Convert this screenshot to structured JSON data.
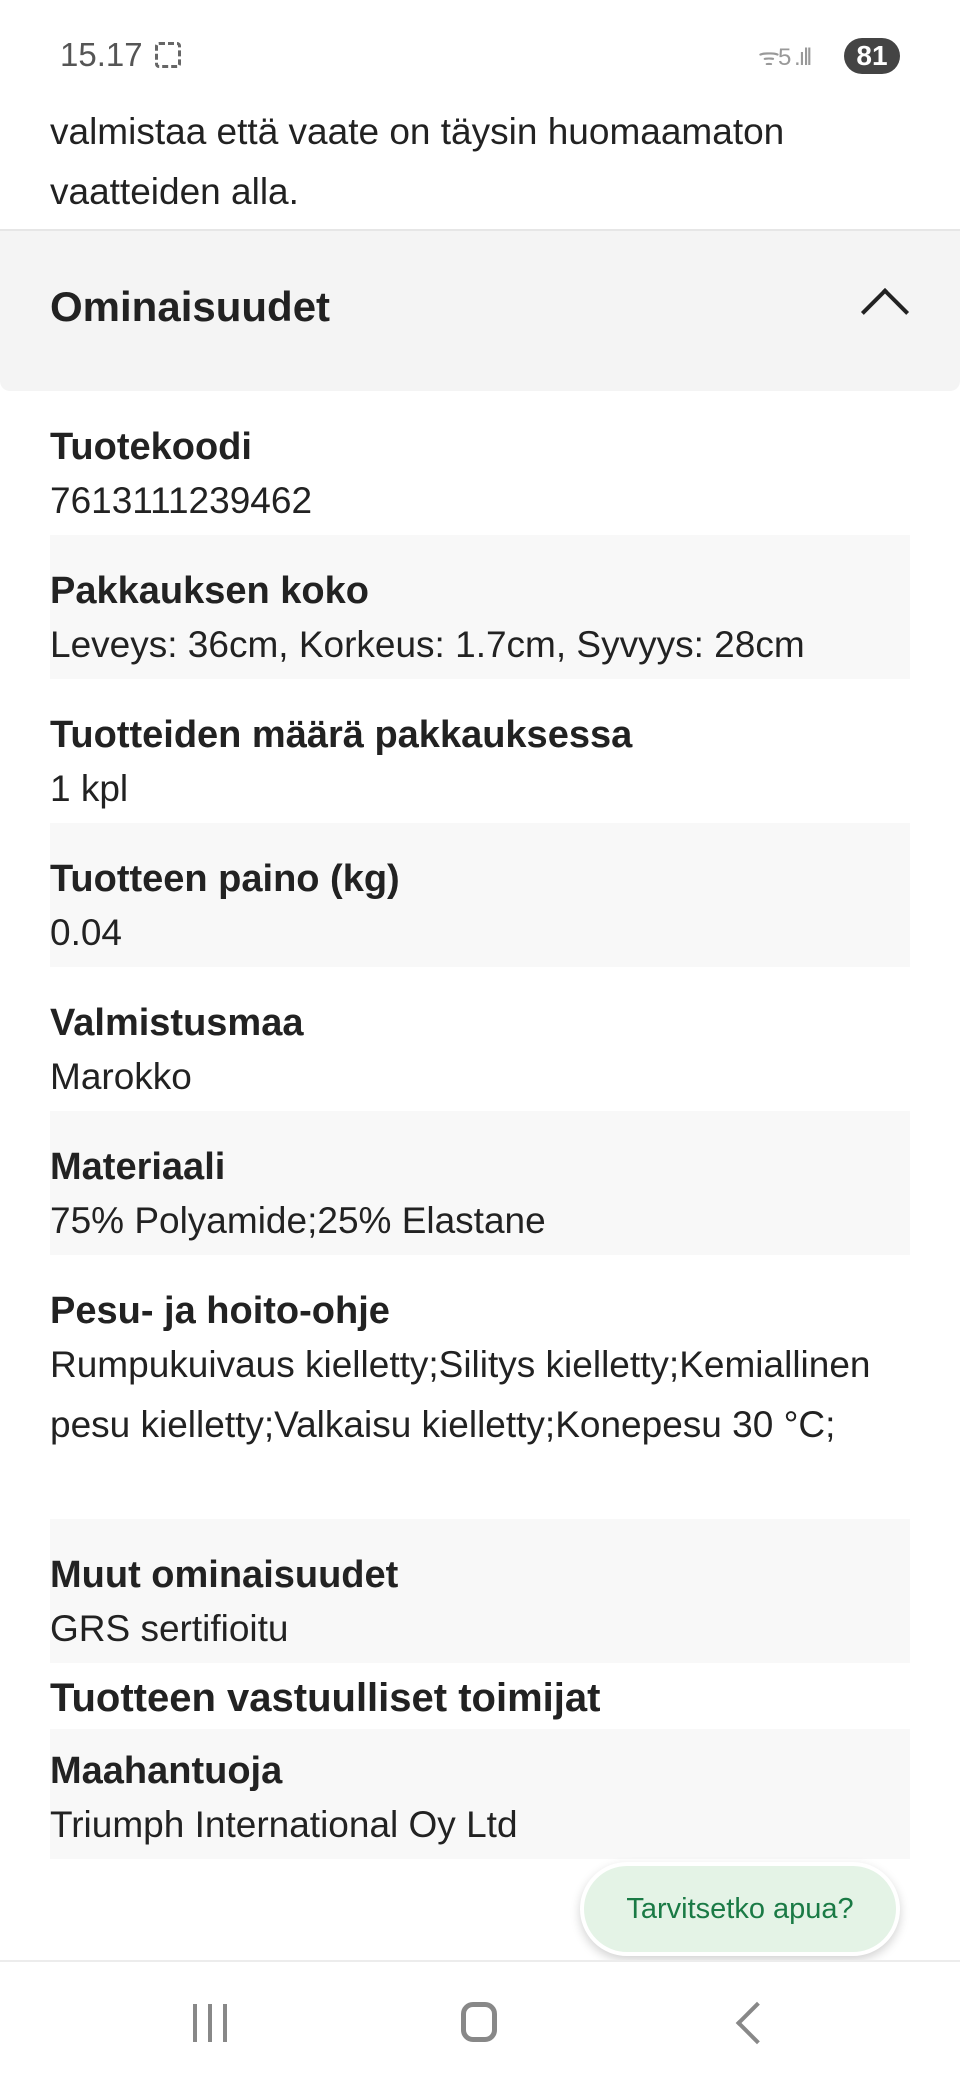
{
  "status_bar": {
    "time": "15.17",
    "signal": "5",
    "battery": "81"
  },
  "intro_text": {
    "line1": "valmistaa että vaate on täysin huomaamaton",
    "line2": "vaatteiden alla."
  },
  "accordion": {
    "title": "Ominaisuudet",
    "expanded": true
  },
  "properties": [
    {
      "label": "Tuotekoodi",
      "value": "7613111239462"
    },
    {
      "label": "Pakkauksen koko",
      "value": "Leveys: 36cm, Korkeus: 1.7cm, Syvyys: 28cm"
    },
    {
      "label": "Tuotteiden määrä pakkauksessa",
      "value": "1 kpl"
    },
    {
      "label": "Tuotteen paino (kg)",
      "value": "0.04"
    },
    {
      "label": "Valmistusmaa",
      "value": "Marokko"
    },
    {
      "label": "Materiaali",
      "value": "75% Polyamide;25% Elastane"
    },
    {
      "label": "Pesu- ja hoito-ohje",
      "value": "Rumpukuivaus kielletty;Silitys kielletty;Kemiallinen pesu kielletty;Valkaisu kielletty;Konepesu 30 °C;"
    },
    {
      "label": "Muut ominaisuudet",
      "value": "GRS sertifioitu"
    }
  ],
  "responsible": {
    "title": "Tuotteen vastuulliset toimijat",
    "importer_label": "Maahantuoja",
    "importer_value": "Triumph International Oy Ltd"
  },
  "help_button": {
    "label": "Tarvitsetko apua?"
  },
  "colors": {
    "accent_green": "#1a7a45",
    "help_bg": "#e4f3e6"
  }
}
